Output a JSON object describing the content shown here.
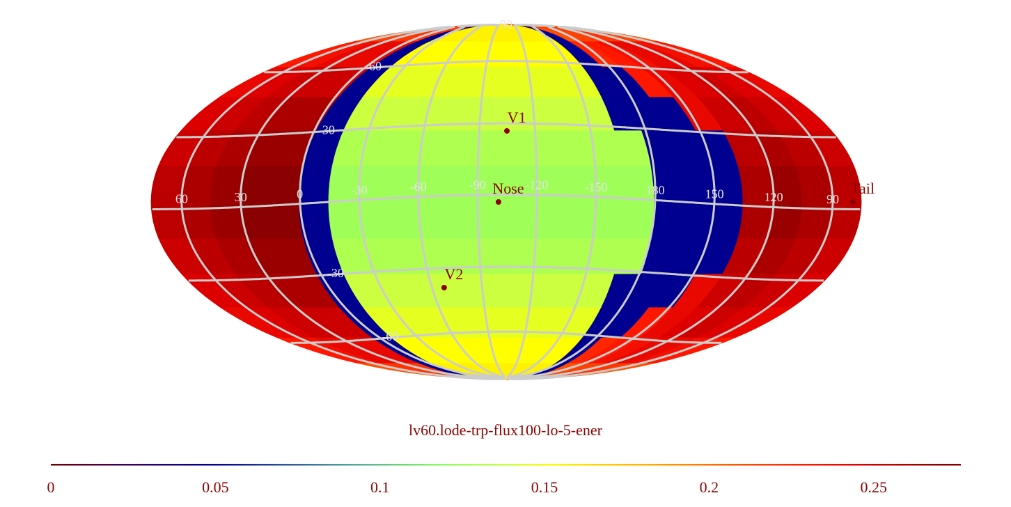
{
  "chart_data": {
    "type": "skymap",
    "title": "lv60.lode-trp-flux100-lo-5-ener",
    "lon_bins": [
      -180,
      -165,
      -150,
      -135,
      -120,
      -105,
      -90,
      -75,
      -60,
      -45,
      -30,
      -15,
      0,
      15,
      30,
      45,
      60,
      75,
      90,
      105,
      120,
      135,
      150,
      165,
      180
    ],
    "lat_bins": [
      -90,
      -75,
      -60,
      -45,
      -30,
      -15,
      0,
      15,
      30,
      45,
      60,
      75,
      90
    ],
    "values": [
      [
        0.21,
        0.215,
        0.22,
        0.22,
        0.22,
        0.05,
        0.155,
        0.155,
        0.155,
        0.155,
        0.155,
        0.155,
        0.155,
        0.155,
        0.155,
        0.155,
        0.05,
        0.21,
        0.215,
        0.215,
        0.22,
        0.22,
        0.215,
        0.21
      ],
      [
        0.23,
        0.235,
        0.24,
        0.24,
        0.24,
        0.05,
        0.15,
        0.15,
        0.15,
        0.15,
        0.15,
        0.15,
        0.15,
        0.15,
        0.15,
        0.15,
        0.05,
        0.225,
        0.23,
        0.235,
        0.24,
        0.24,
        0.235,
        0.23
      ],
      [
        0.24,
        0.245,
        0.25,
        0.25,
        0.25,
        0.05,
        0.145,
        0.145,
        0.145,
        0.145,
        0.145,
        0.145,
        0.145,
        0.145,
        0.145,
        0.145,
        0.05,
        0.05,
        0.23,
        0.24,
        0.245,
        0.25,
        0.245,
        0.24
      ],
      [
        0.245,
        0.25,
        0.255,
        0.26,
        0.26,
        0.05,
        0.14,
        0.14,
        0.14,
        0.14,
        0.14,
        0.14,
        0.14,
        0.14,
        0.14,
        0.14,
        0.05,
        0.05,
        0.05,
        0.24,
        0.25,
        0.255,
        0.25,
        0.245
      ],
      [
        0.25,
        0.255,
        0.26,
        0.265,
        0.265,
        0.05,
        0.13,
        0.13,
        0.13,
        0.13,
        0.13,
        0.13,
        0.13,
        0.13,
        0.13,
        0.13,
        0.13,
        0.05,
        0.05,
        0.05,
        0.255,
        0.26,
        0.255,
        0.25
      ],
      [
        0.255,
        0.26,
        0.265,
        0.27,
        0.27,
        0.05,
        0.125,
        0.125,
        0.125,
        0.125,
        0.125,
        0.125,
        0.125,
        0.125,
        0.125,
        0.125,
        0.125,
        0.05,
        0.05,
        0.05,
        0.26,
        0.265,
        0.26,
        0.255
      ],
      [
        0.255,
        0.26,
        0.265,
        0.27,
        0.27,
        0.05,
        0.125,
        0.125,
        0.125,
        0.125,
        0.125,
        0.125,
        0.125,
        0.125,
        0.125,
        0.125,
        0.125,
        0.05,
        0.05,
        0.05,
        0.26,
        0.265,
        0.26,
        0.255
      ],
      [
        0.25,
        0.255,
        0.26,
        0.265,
        0.265,
        0.05,
        0.13,
        0.13,
        0.13,
        0.13,
        0.13,
        0.13,
        0.13,
        0.13,
        0.13,
        0.13,
        0.13,
        0.05,
        0.05,
        0.05,
        0.255,
        0.26,
        0.255,
        0.25
      ],
      [
        0.245,
        0.25,
        0.255,
        0.26,
        0.26,
        0.05,
        0.14,
        0.14,
        0.14,
        0.14,
        0.14,
        0.14,
        0.14,
        0.14,
        0.14,
        0.14,
        0.05,
        0.05,
        0.05,
        0.24,
        0.25,
        0.255,
        0.25,
        0.245
      ],
      [
        0.24,
        0.245,
        0.25,
        0.25,
        0.25,
        0.05,
        0.145,
        0.145,
        0.145,
        0.145,
        0.145,
        0.145,
        0.145,
        0.145,
        0.145,
        0.145,
        0.05,
        0.05,
        0.23,
        0.24,
        0.245,
        0.25,
        0.245,
        0.24
      ],
      [
        0.23,
        0.235,
        0.24,
        0.24,
        0.24,
        0.05,
        0.15,
        0.15,
        0.15,
        0.15,
        0.15,
        0.15,
        0.15,
        0.15,
        0.15,
        0.15,
        0.05,
        0.225,
        0.23,
        0.235,
        0.24,
        0.24,
        0.235,
        0.23
      ],
      [
        0.21,
        0.215,
        0.22,
        0.22,
        0.22,
        0.05,
        0.155,
        0.155,
        0.155,
        0.155,
        0.155,
        0.155,
        0.155,
        0.155,
        0.155,
        0.155,
        0.05,
        0.21,
        0.215,
        0.215,
        0.22,
        0.22,
        0.215,
        0.21
      ]
    ],
    "lon_ticks": [
      60,
      30,
      0,
      -30,
      -60,
      -90,
      -120,
      -150,
      180,
      150,
      120,
      90
    ],
    "lat_ticks": [
      90,
      60,
      30,
      -30,
      -60
    ],
    "markers": [
      {
        "label": "V1",
        "lon": 0.4,
        "lat": 29.7
      },
      {
        "label": "Nose",
        "lon": -3.9,
        "lat": 0
      },
      {
        "label": "V2",
        "lon": -35.9,
        "lat": -36.1
      },
      {
        "label": "Tail",
        "lon": 175.8,
        "lat": 0
      }
    ],
    "colorbar": {
      "xlim": [
        0,
        0.2765
      ],
      "xticks": [
        0,
        0.05,
        0.1,
        0.15,
        0.2,
        0.25
      ]
    }
  }
}
